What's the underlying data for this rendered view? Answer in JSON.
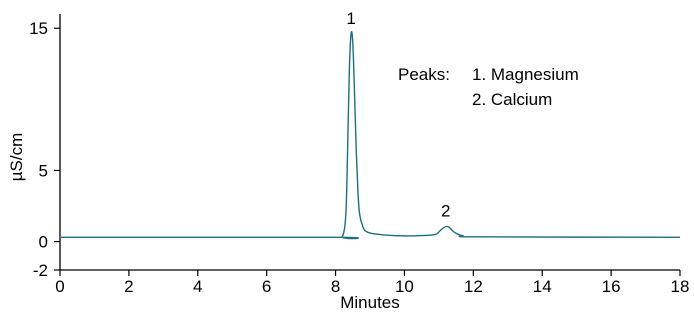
{
  "chart_data": {
    "type": "line",
    "xlabel": "Minutes",
    "ylabel": "µS/cm",
    "xlim": [
      0,
      18
    ],
    "ylim": [
      -2,
      16
    ],
    "xticks": [
      0,
      2,
      4,
      6,
      8,
      10,
      12,
      14,
      16,
      18
    ],
    "yticks": [
      -2,
      0,
      5,
      15
    ],
    "grid": false,
    "line_color": "#1f6e7c",
    "baseline": 0.3,
    "series": [
      {
        "points": [
          [
            0,
            0.3
          ],
          [
            8.0,
            0.3
          ],
          [
            8.2,
            0.35
          ],
          [
            8.3,
            2.0
          ],
          [
            8.35,
            6.5
          ],
          [
            8.4,
            12.0
          ],
          [
            8.45,
            14.6
          ],
          [
            8.5,
            14.0
          ],
          [
            8.55,
            10.5
          ],
          [
            8.6,
            6.5
          ],
          [
            8.65,
            3.5
          ],
          [
            8.7,
            1.9
          ],
          [
            8.8,
            1.0
          ],
          [
            8.9,
            0.7
          ],
          [
            9.1,
            0.55
          ],
          [
            9.5,
            0.45
          ],
          [
            10.0,
            0.4
          ],
          [
            10.5,
            0.42
          ],
          [
            10.9,
            0.5
          ],
          [
            11.05,
            0.8
          ],
          [
            11.2,
            1.05
          ],
          [
            11.3,
            1.0
          ],
          [
            11.45,
            0.65
          ],
          [
            11.7,
            0.4
          ],
          [
            12.2,
            0.33
          ],
          [
            18,
            0.3
          ]
        ]
      }
    ],
    "peaks": [
      {
        "label": "1",
        "x": 8.45,
        "y": 14.6
      },
      {
        "label": "2",
        "x": 11.2,
        "y": 1.05
      }
    ],
    "annotation": {
      "title": "Peaks:",
      "items": [
        "1. Magnesium",
        "2. Calcium"
      ]
    }
  }
}
